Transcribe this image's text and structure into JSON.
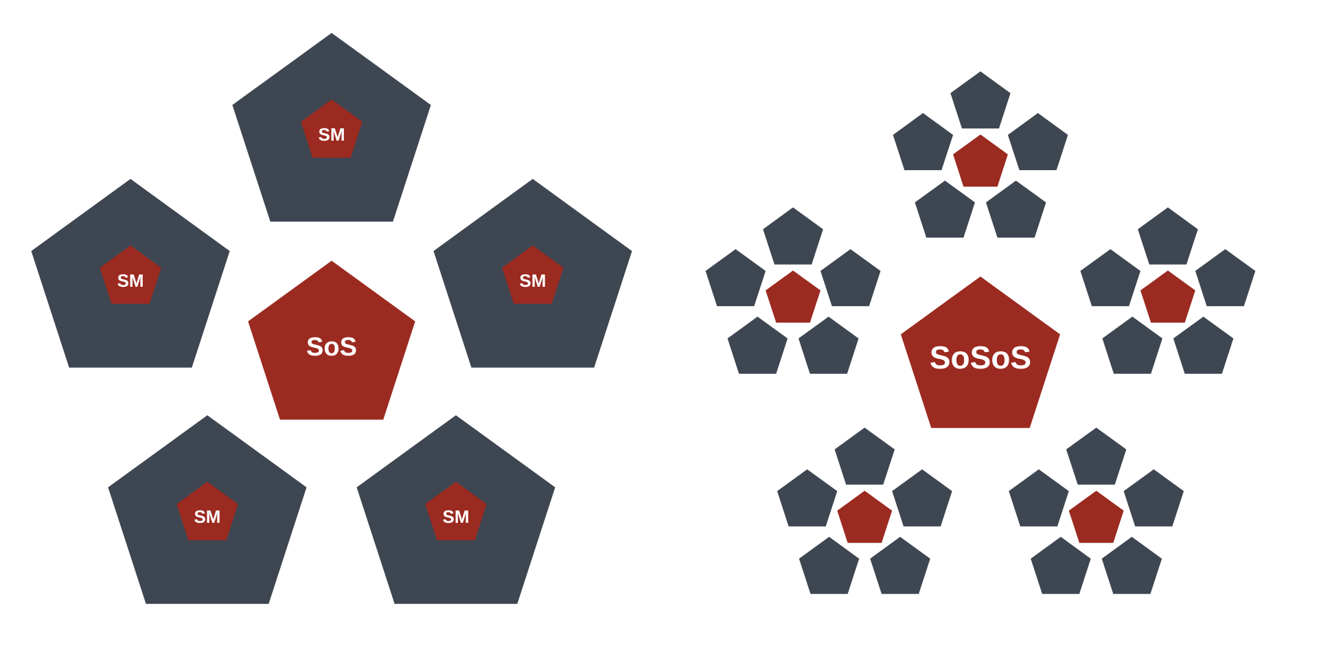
{
  "colors": {
    "background": "#ffffff",
    "team": "#3e4651",
    "master": "#9b2a20",
    "label": "#ffffff"
  },
  "left_diagram": {
    "center_label": "SoS",
    "member_label": "SM",
    "member_count": 5
  },
  "right_diagram": {
    "center_label": "SoSoS",
    "cluster_count": 5,
    "teams_per_cluster": 5
  }
}
